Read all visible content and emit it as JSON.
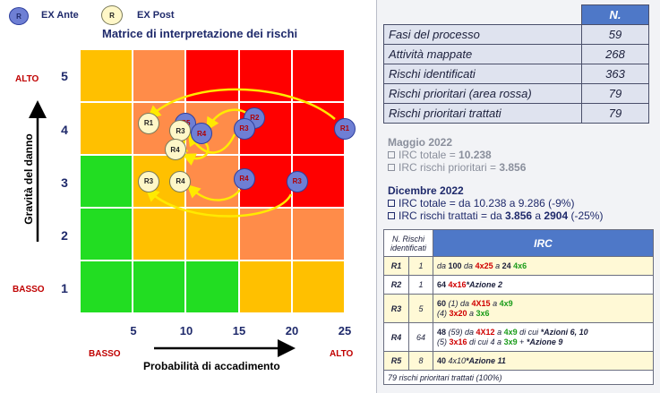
{
  "legend": {
    "ante": {
      "symbol": "R",
      "label": "EX Ante",
      "color": "#6e7fd4"
    },
    "post": {
      "symbol": "R",
      "label": "EX Post",
      "color": "#fff7c8"
    }
  },
  "chart_data": {
    "type": "heatmap",
    "title": "Matrice di interpretazione dei rischi",
    "xlabel": "Probabilità di accadimento",
    "ylabel": "Gravità del danno",
    "x_ticks": [
      "5",
      "10",
      "15",
      "20",
      "25"
    ],
    "y_ticks": [
      "1",
      "2",
      "3",
      "4",
      "5"
    ],
    "x_low_label": "BASSO",
    "x_high_label": "ALTO",
    "y_low_label": "BASSO",
    "y_high_label": "ALTO",
    "cell_colors": [
      [
        "#ffc000",
        "#ff8c49",
        "#ff0000",
        "#ff0000",
        "#ff0000"
      ],
      [
        "#ffc000",
        "#ff8c49",
        "#ff8c49",
        "#ff0000",
        "#ff0000"
      ],
      [
        "#22dd22",
        "#ffc000",
        "#ff8c49",
        "#ff0000",
        "#ff0000"
      ],
      [
        "#22dd22",
        "#ffc000",
        "#ffc000",
        "#ff8c49",
        "#ff8c49"
      ],
      [
        "#22dd22",
        "#22dd22",
        "#22dd22",
        "#ffc000",
        "#ffc000"
      ]
    ],
    "colors": {
      "green": "#22dd22",
      "yellow": "#ffc000",
      "orange": "#ff8c49",
      "red": "#ff0000"
    },
    "ex_ante_points": [
      {
        "label": "R1",
        "x": 25,
        "y": 4
      },
      {
        "label": "R2",
        "x": 16.5,
        "y": 4.2
      },
      {
        "label": "R3",
        "x": 15.5,
        "y": 4
      },
      {
        "label": "R5",
        "x": 10,
        "y": 4.1
      },
      {
        "label": "R4",
        "x": 11.5,
        "y": 3.9
      },
      {
        "label": "R4",
        "x": 15.5,
        "y": 3.05
      },
      {
        "label": "R3",
        "x": 20.5,
        "y": 3.0
      }
    ],
    "ex_post_points": [
      {
        "label": "R1",
        "x": 6.5,
        "y": 4.1
      },
      {
        "label": "R3",
        "x": 9.5,
        "y": 3.95
      },
      {
        "label": "R4",
        "x": 9,
        "y": 3.6
      },
      {
        "label": "R3",
        "x": 6.5,
        "y": 3
      },
      {
        "label": "R4",
        "x": 9.5,
        "y": 3
      }
    ]
  },
  "stats": {
    "header": "N.",
    "rows": [
      {
        "label": "Fasi del processo",
        "value": "59"
      },
      {
        "label": "Attività mappate",
        "value": "268"
      },
      {
        "label": "Rischi identificati",
        "value": "363"
      },
      {
        "label": "Rischi prioritari (area rossa)",
        "value": "79"
      },
      {
        "label": "Rischi prioritari trattati",
        "value": "79"
      }
    ]
  },
  "may": {
    "title": "Maggio  2022",
    "l1_pre": "IRC totale = ",
    "l1_val": "10.238",
    "l2_pre": "IRC rischi prioritari = ",
    "l2_val": "3.856"
  },
  "dec": {
    "title": "Dicembre 2022",
    "l1": "IRC totale = da 10.238 a 9.286 (-9%)",
    "l2_pre": "IRC rischi trattati = da ",
    "l2_a": "3.856",
    "l2_mid": " a ",
    "l2_b": "2904",
    "l2_post": " (-25%)"
  },
  "irc": {
    "h_n": "N. Rischi identificati",
    "h_irc": "IRC",
    "footer": "79 rischi prioritari trattati (100%)",
    "r1": {
      "id": "R1",
      "n": "1",
      "a": "da ",
      "b": "100",
      "c": "  da ",
      "d": "4x25",
      "e": " a ",
      "f": "24",
      "g": " ",
      "h": "4x6"
    },
    "r2": {
      "id": "R2",
      "n": "1",
      "a": "64 ",
      "b": "4x16",
      "c": "*Azione 2"
    },
    "r3": {
      "id": "R3",
      "n": "5",
      "a": "60",
      "b": " (1) da ",
      "c": "4X15",
      "d": " a ",
      "e": "4x9",
      "f": "(4) ",
      "g": "3x20",
      "h": " a ",
      "i": "3x6"
    },
    "r4": {
      "id": "R4",
      "n": "64",
      "a": "48",
      "b": " (59) da ",
      "c": "4X12",
      "d": " a ",
      "e": "4x9",
      "f": " di cui  ",
      "g": "*Azioni 6, 10",
      "h": "(5)  ",
      "i": "3x16",
      "j": " di cui 4 a ",
      "k": "3x9",
      "l": " + ",
      "m": "*Azione 9"
    },
    "r5": {
      "id": "R5",
      "n": "8",
      "a": "40",
      "b": " 4x10",
      "c": "*Azione 11"
    }
  }
}
